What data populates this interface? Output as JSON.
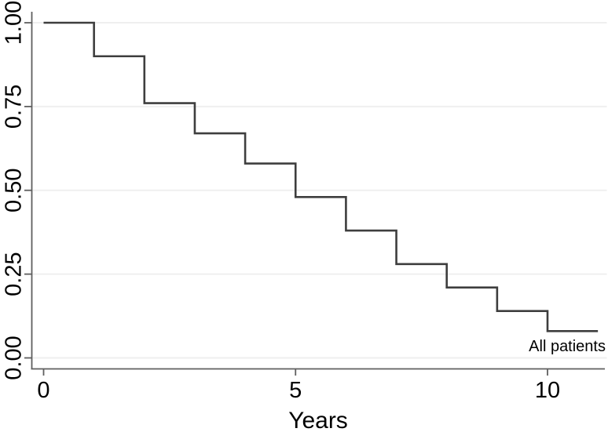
{
  "figure": {
    "background": "#ffffff",
    "curve_color": "#3e3e3e",
    "axis_color": "#5f5f5f",
    "grid_color": "#efefef",
    "text_color": "#000000"
  },
  "chart_data": {
    "type": "line",
    "subtype": "kaplan-meier-survival-step",
    "title": "",
    "xlabel": "Years",
    "ylabel": "",
    "xlim": [
      0,
      11.2
    ],
    "ylim": [
      0.0,
      1.0
    ],
    "x_ticks": [
      "0",
      "5",
      "10"
    ],
    "y_ticks": [
      "0.00",
      "0.25",
      "0.50",
      "0.75",
      "1.00"
    ],
    "grid": "horizontal gridlines at y ticks only",
    "legend_position": "text label at lower-right end of curve",
    "series": [
      {
        "name": "All patients",
        "step_start_years": [
          0,
          1,
          2,
          3,
          4,
          5,
          6,
          7,
          8,
          9,
          10
        ],
        "survival_values": [
          1.0,
          0.9,
          0.76,
          0.67,
          0.58,
          0.48,
          0.38,
          0.28,
          0.21,
          0.14,
          0.08
        ],
        "curve_end_year": 11
      }
    ]
  }
}
